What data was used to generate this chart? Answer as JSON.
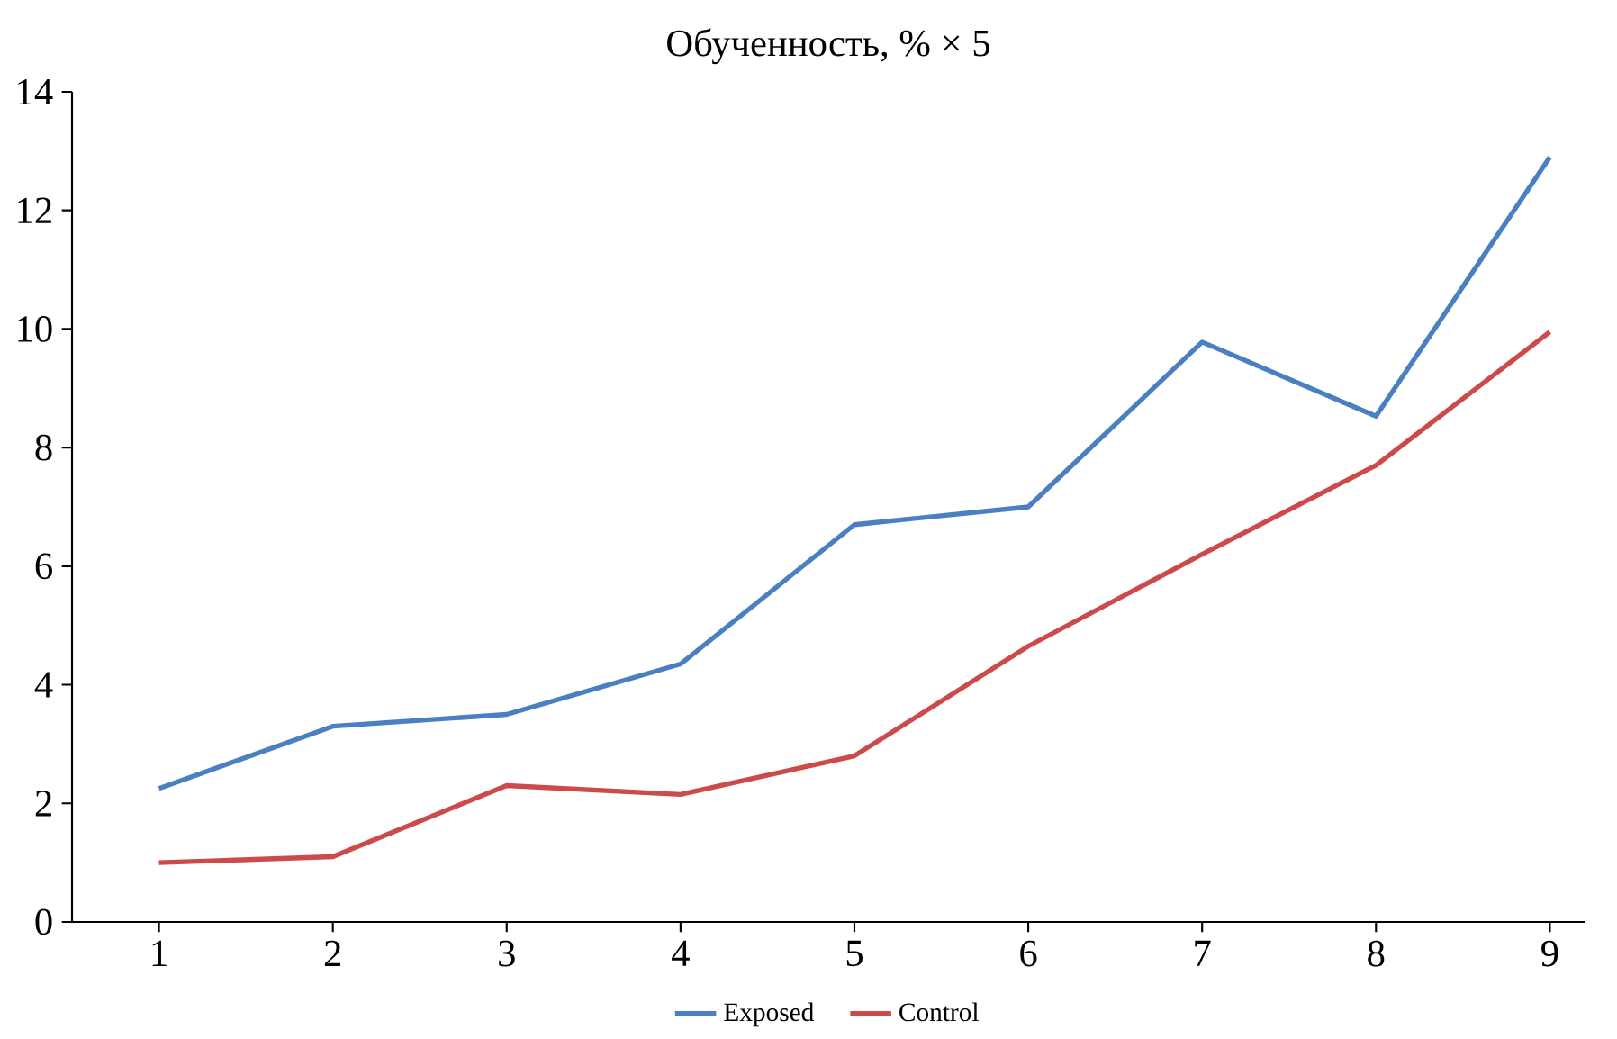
{
  "chart_data": {
    "type": "line",
    "title": "Обученность, % × 5",
    "x": [
      1,
      2,
      3,
      4,
      5,
      6,
      7,
      8,
      9
    ],
    "series": [
      {
        "name": "Exposed",
        "color": "#4a7fc1",
        "values": [
          2.25,
          3.3,
          3.5,
          4.35,
          6.7,
          7.0,
          9.78,
          8.53,
          12.9
        ]
      },
      {
        "name": "Control",
        "color": "#cc4a4a",
        "values": [
          1.0,
          1.1,
          2.3,
          2.15,
          2.8,
          4.65,
          6.2,
          7.7,
          9.95
        ]
      }
    ],
    "xlim": [
      0.5,
      9.2
    ],
    "ylim": [
      0,
      14
    ],
    "xticks": [
      1,
      2,
      3,
      4,
      5,
      6,
      7,
      8,
      9
    ],
    "yticks": [
      0,
      2,
      4,
      6,
      8,
      10,
      12,
      14
    ],
    "legend": "bottom",
    "marker": "none",
    "line_style": "solid",
    "grid": false
  }
}
